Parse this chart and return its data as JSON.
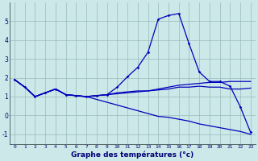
{
  "x": [
    0,
    1,
    2,
    3,
    4,
    5,
    6,
    7,
    8,
    9,
    10,
    11,
    12,
    13,
    14,
    15,
    16,
    17,
    18,
    19,
    20,
    21,
    22,
    23
  ],
  "line1": [
    1.9,
    1.5,
    1.0,
    1.2,
    1.4,
    1.1,
    1.05,
    1.0,
    1.05,
    1.1,
    1.5,
    2.05,
    2.55,
    3.35,
    5.1,
    5.3,
    5.4,
    3.8,
    2.3,
    1.8,
    1.8,
    1.55,
    0.45,
    -0.9
  ],
  "line2": [
    1.9,
    1.5,
    1.0,
    1.2,
    1.4,
    1.1,
    1.05,
    1.0,
    1.05,
    1.1,
    1.2,
    1.25,
    1.3,
    1.3,
    1.4,
    1.5,
    1.6,
    1.65,
    1.7,
    1.75,
    1.75,
    1.8,
    1.8,
    1.8
  ],
  "line3": [
    1.9,
    1.5,
    1.0,
    1.2,
    1.4,
    1.1,
    1.05,
    1.0,
    0.85,
    0.7,
    0.55,
    0.4,
    0.25,
    0.1,
    -0.05,
    -0.1,
    -0.2,
    -0.3,
    -0.45,
    -0.55,
    -0.65,
    -0.75,
    -0.85,
    -1.0
  ],
  "line4": [
    1.9,
    1.5,
    1.0,
    1.2,
    1.4,
    1.1,
    1.05,
    1.0,
    1.05,
    1.1,
    1.15,
    1.2,
    1.25,
    1.3,
    1.35,
    1.4,
    1.5,
    1.5,
    1.55,
    1.5,
    1.5,
    1.4,
    1.4,
    1.45
  ],
  "xlabel": "Graphe des températures (°c)",
  "ylim": [
    -1.5,
    6.0
  ],
  "xlim": [
    -0.5,
    23.5
  ],
  "yticks": [
    -1,
    0,
    1,
    2,
    3,
    4,
    5
  ],
  "bg_color": "#cce8e8",
  "line_color": "#0000bb",
  "grid_color": "#99bbbb",
  "tick_color": "#000077",
  "label_color": "#000077"
}
